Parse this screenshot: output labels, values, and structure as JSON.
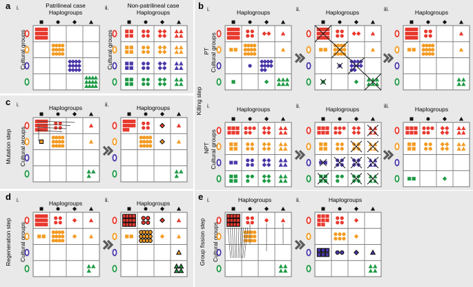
{
  "panels": {
    "a": {
      "letter": "a",
      "roman": [
        "i.",
        "ii."
      ],
      "patri_title": [
        "Patrilineal case",
        "Haplogroups"
      ],
      "nonpatri_title": [
        "Non-patrilineal case",
        "Haplogroups"
      ],
      "ylabel": "Cultural groups"
    },
    "b": {
      "letter": "b",
      "roman": [
        "i.",
        "ii.",
        "iii."
      ],
      "title": "Haplogroups",
      "ylabel": "Cultural groups",
      "row_labels": [
        "PT",
        "NPT"
      ],
      "side_label": "Killing step"
    },
    "c": {
      "letter": "c",
      "roman": [
        "i.",
        "ii."
      ],
      "title": "Haplogroups",
      "ylabel": "Cultural groups",
      "side_label": "Mutation step"
    },
    "d": {
      "letter": "d",
      "roman": [
        "i.",
        "ii."
      ],
      "title": "Haplogroups",
      "ylabel": "Cultural groups",
      "side_label": "Regeneration step"
    },
    "e": {
      "letter": "e",
      "roman": [
        "i.",
        "ii."
      ],
      "title": "Haplogroups",
      "ylabel": "Cultural groups",
      "side_label": "Group fission step"
    }
  },
  "colors": {
    "red": "#e8392e",
    "orange": "#f39b23",
    "blue": "#4b37a8",
    "green": "#1f9a45",
    "panel_gray": "#e9e9e9",
    "grid_line": "#7f7f7f",
    "arrow": "#595959"
  },
  "column_markers": [
    "square",
    "circle",
    "diamond",
    "triangle"
  ],
  "row_markers": [
    "red-oval",
    "orange-oval",
    "blue-oval",
    "green-oval"
  ]
}
